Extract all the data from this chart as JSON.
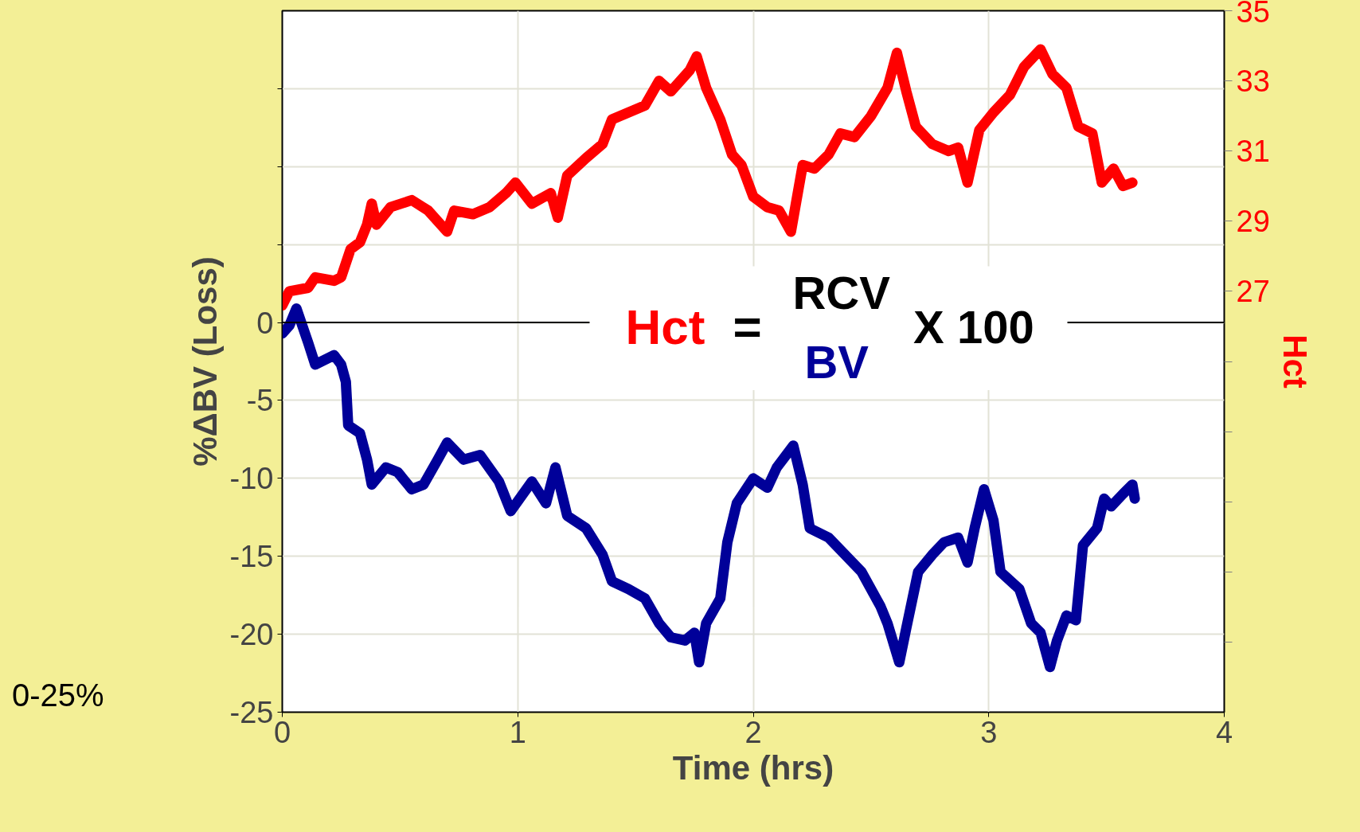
{
  "chart_data": {
    "type": "line",
    "xlabel": "Time (hrs)",
    "ylabel": "%ΔBV (Loss)",
    "y2label": "Hct",
    "xlim": [
      0,
      4
    ],
    "xticks": [
      0,
      1,
      2,
      3,
      4
    ],
    "ylim": [
      -25,
      20
    ],
    "yticks": [
      -25,
      -20,
      -15,
      -10,
      -5,
      0,
      {
        "value": 5,
        "label": null
      },
      {
        "value": 10,
        "label": null
      },
      {
        "value": 15,
        "label": null
      }
    ],
    "y2lim": [
      15,
      35
    ],
    "y2ticks": [
      {
        "value": 17,
        "label": null
      },
      {
        "value": 19,
        "label": null
      },
      {
        "value": 21,
        "label": null
      },
      {
        "value": 23,
        "label": null
      },
      {
        "value": 25,
        "label": null
      },
      27,
      29,
      31,
      33,
      35
    ],
    "grid": true,
    "marker": "none",
    "line_style": "solid",
    "ref_lines": [
      {
        "axis": "y",
        "value": 0,
        "color": "#000000"
      }
    ],
    "annotations": [
      "0-25%",
      "Hct",
      "=",
      "RCV",
      "BV",
      "X 100"
    ],
    "series": [
      {
        "color": "#000099",
        "x": [
          0,
          0.03,
          0.06,
          0.11,
          0.14,
          0.22,
          0.25,
          0.27,
          0.28,
          0.33,
          0.36,
          0.38,
          0.44,
          0.49,
          0.55,
          0.6,
          0.66,
          0.7,
          0.77,
          0.84,
          0.92,
          0.97,
          1.06,
          1.12,
          1.16,
          1.21,
          1.29,
          1.36,
          1.4,
          1.47,
          1.54,
          1.6,
          1.65,
          1.71,
          1.75,
          1.77,
          1.8,
          1.86,
          1.89,
          1.93,
          2.0,
          2.06,
          2.1,
          2.17,
          2.21,
          2.24,
          2.32,
          2.39,
          2.46,
          2.54,
          2.57,
          2.62,
          2.65,
          2.7,
          2.76,
          2.81,
          2.87,
          2.91,
          2.94,
          2.98,
          3.02,
          3.05,
          3.13,
          3.18,
          3.22,
          3.26,
          3.29,
          3.33,
          3.37,
          3.4,
          3.46,
          3.49,
          3.52,
          3.57,
          3.61,
          3.62
        ],
        "values": [
          -0.7,
          -0.2,
          0.9,
          -1.3,
          -2.7,
          -2.1,
          -2.7,
          -3.8,
          -6.6,
          -7.1,
          -8.8,
          -10.4,
          -9.3,
          -9.6,
          -10.7,
          -10.4,
          -8.8,
          -7.7,
          -8.8,
          -8.5,
          -10.2,
          -12.1,
          -10.2,
          -11.6,
          -9.3,
          -12.4,
          -13.2,
          -14.9,
          -16.6,
          -17.1,
          -17.7,
          -19.3,
          -20.2,
          -20.4,
          -19.9,
          -21.8,
          -19.3,
          -17.7,
          -14.1,
          -11.6,
          -10.0,
          -10.6,
          -9.3,
          -7.9,
          -10.4,
          -13.2,
          -13.8,
          -14.9,
          -16.0,
          -18.2,
          -19.3,
          -21.8,
          -19.6,
          -16.0,
          -14.9,
          -14.1,
          -13.8,
          -15.4,
          -13.2,
          -10.7,
          -12.7,
          -16.0,
          -17.1,
          -19.3,
          -19.9,
          -22.1,
          -20.4,
          -18.8,
          -19.1,
          -14.3,
          -13.2,
          -11.3,
          -11.8,
          -11.0,
          -10.4,
          -11.3
        ]
      },
      {
        "color": "#ff0000",
        "axis": "y2",
        "x": [
          0,
          0.03,
          0.11,
          0.14,
          0.22,
          0.25,
          0.29,
          0.33,
          0.36,
          0.38,
          0.4,
          0.46,
          0.55,
          0.62,
          0.7,
          0.73,
          0.81,
          0.88,
          0.95,
          0.99,
          1.06,
          1.14,
          1.17,
          1.21,
          1.29,
          1.36,
          1.4,
          1.47,
          1.54,
          1.6,
          1.65,
          1.73,
          1.76,
          1.8,
          1.86,
          1.91,
          1.95,
          2.0,
          2.06,
          2.11,
          2.16,
          2.21,
          2.26,
          2.32,
          2.37,
          2.43,
          2.5,
          2.57,
          2.61,
          2.65,
          2.69,
          2.76,
          2.83,
          2.87,
          2.91,
          2.96,
          3.02,
          3.09,
          3.15,
          3.22,
          3.27,
          3.33,
          3.38,
          3.44,
          3.48,
          3.53,
          3.57,
          3.61
        ],
        "values": [
          26.6,
          27.0,
          27.1,
          27.4,
          27.3,
          27.4,
          28.2,
          28.4,
          28.9,
          29.5,
          28.9,
          29.4,
          29.6,
          29.3,
          28.7,
          29.3,
          29.2,
          29.4,
          29.8,
          30.1,
          29.5,
          29.8,
          29.1,
          30.3,
          30.8,
          31.2,
          31.9,
          32.1,
          32.3,
          33.0,
          32.7,
          33.3,
          33.7,
          32.8,
          31.9,
          30.9,
          30.6,
          29.7,
          29.4,
          29.3,
          28.7,
          30.6,
          30.5,
          30.9,
          31.5,
          31.4,
          32.0,
          32.8,
          33.8,
          32.7,
          31.7,
          31.2,
          31.0,
          31.1,
          30.1,
          31.6,
          32.1,
          32.6,
          33.4,
          33.9,
          33.2,
          32.8,
          31.7,
          31.5,
          30.1,
          30.5,
          30.0,
          30.1
        ]
      }
    ]
  }
}
